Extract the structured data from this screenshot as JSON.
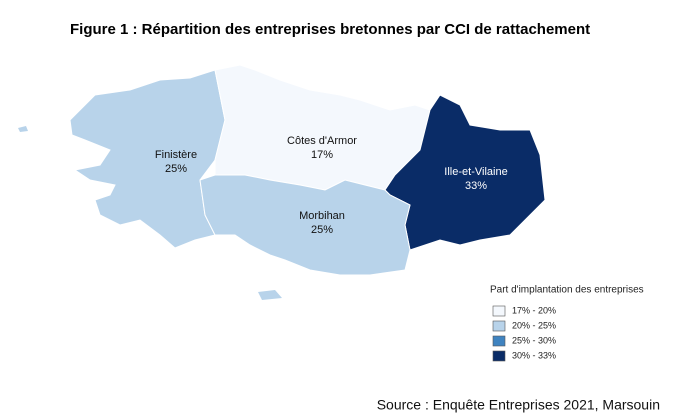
{
  "title": "Figure 1 : Répartition des entreprises bretonnes par CCI de rattachement",
  "regions": [
    {
      "name": "Finistère",
      "value": 25,
      "value_label": "25%"
    },
    {
      "name": "Côtes d'Armor",
      "value": 17,
      "value_label": "17%"
    },
    {
      "name": "Ille-et-Vilaine",
      "value": 33,
      "value_label": "33%"
    },
    {
      "name": "Morbihan",
      "value": 25,
      "value_label": "25%"
    }
  ],
  "legend": {
    "title": "Part d'implantation des entreprises",
    "items": [
      {
        "label": "17% - 20%",
        "min": 17,
        "max": 20,
        "color": "#f4f8fd"
      },
      {
        "label": "20% - 25%",
        "min": 20,
        "max": 25,
        "color": "#b8d3ea"
      },
      {
        "label": "25% - 30%",
        "min": 25,
        "max": 30,
        "color": "#3f83c0"
      },
      {
        "label": "30% - 33%",
        "min": 30,
        "max": 33,
        "color": "#0a2c67"
      }
    ]
  },
  "source": "Source : Enquête Entreprises 2021, Marsouin"
}
